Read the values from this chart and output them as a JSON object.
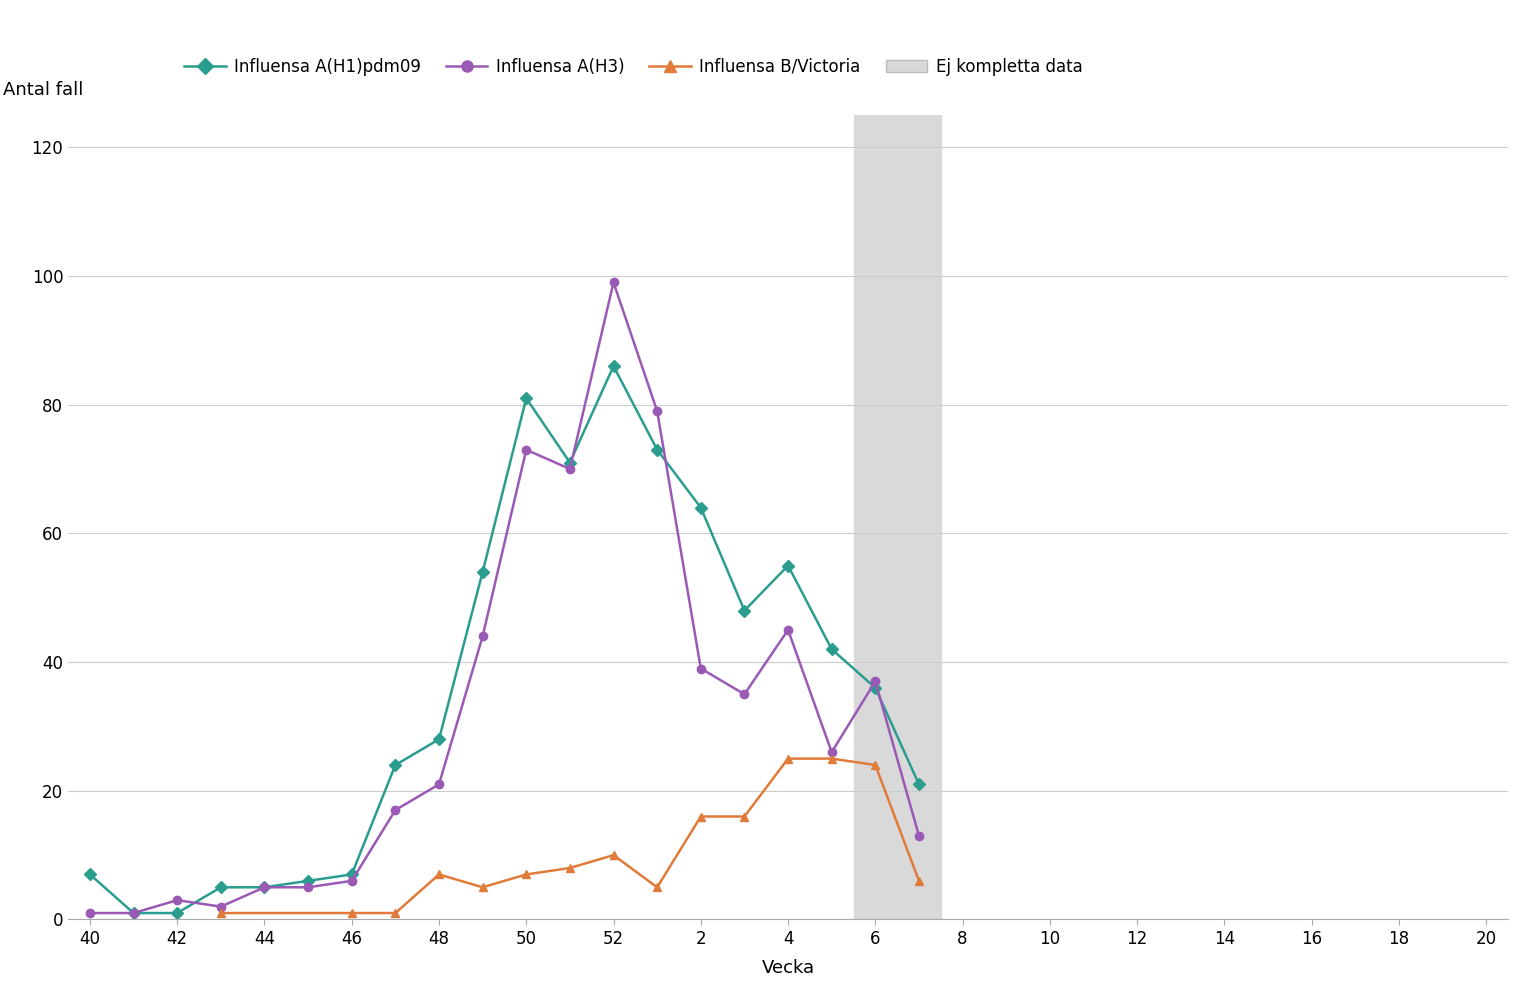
{
  "ylabel": "Antal fall",
  "xlabel": "Vecka",
  "ylim": [
    0,
    125
  ],
  "yticks": [
    0,
    20,
    40,
    60,
    80,
    100,
    120
  ],
  "xtick_labels": [
    "40",
    "42",
    "44",
    "46",
    "48",
    "50",
    "52",
    "2",
    "4",
    "6",
    "8",
    "10",
    "12",
    "14",
    "16",
    "18",
    "20"
  ],
  "background_color": "#ffffff",
  "shade_color": "#d9d9d9",
  "series": [
    {
      "label": "Influensa A(H1)pdm09",
      "color": "#2a9d8f",
      "marker": "D",
      "markersize": 6,
      "weeks": [
        40,
        41,
        42,
        43,
        44,
        45,
        46,
        47,
        48,
        49,
        50,
        51,
        52,
        1,
        2,
        3,
        4,
        5,
        6,
        7
      ],
      "y": [
        7,
        1,
        1,
        5,
        5,
        6,
        7,
        24,
        28,
        54,
        81,
        71,
        86,
        73,
        64,
        48,
        55,
        42,
        36,
        21
      ]
    },
    {
      "label": "Influensa A(H3)",
      "color": "#9b59b6",
      "marker": "o",
      "markersize": 6,
      "weeks": [
        40,
        41,
        42,
        43,
        44,
        45,
        46,
        47,
        48,
        49,
        50,
        51,
        52,
        1,
        2,
        3,
        4,
        5,
        6,
        7
      ],
      "y": [
        1,
        1,
        3,
        2,
        5,
        5,
        6,
        17,
        21,
        44,
        73,
        70,
        99,
        79,
        39,
        35,
        45,
        26,
        37,
        13
      ]
    },
    {
      "label": "Influensa B/Victoria",
      "color": "#e07b39",
      "marker": "^",
      "markersize": 6,
      "weeks": [
        43,
        46,
        47,
        48,
        49,
        50,
        51,
        52,
        1,
        2,
        3,
        4,
        5,
        6,
        7
      ],
      "y": [
        1,
        1,
        1,
        7,
        5,
        7,
        8,
        10,
        5,
        16,
        16,
        25,
        25,
        24,
        6
      ]
    }
  ],
  "legend_items": [
    {
      "label": "Influensa A(H1)pdm09",
      "color": "#2a9d8f",
      "marker": "D"
    },
    {
      "label": "Influensa A(H3)",
      "color": "#9b59b6",
      "marker": "o"
    },
    {
      "label": "Influensa B/Victoria",
      "color": "#e07b39",
      "marker": "^"
    },
    {
      "label": "Ej kompletta data",
      "color": "#d9d9d9",
      "marker": "rect"
    }
  ]
}
